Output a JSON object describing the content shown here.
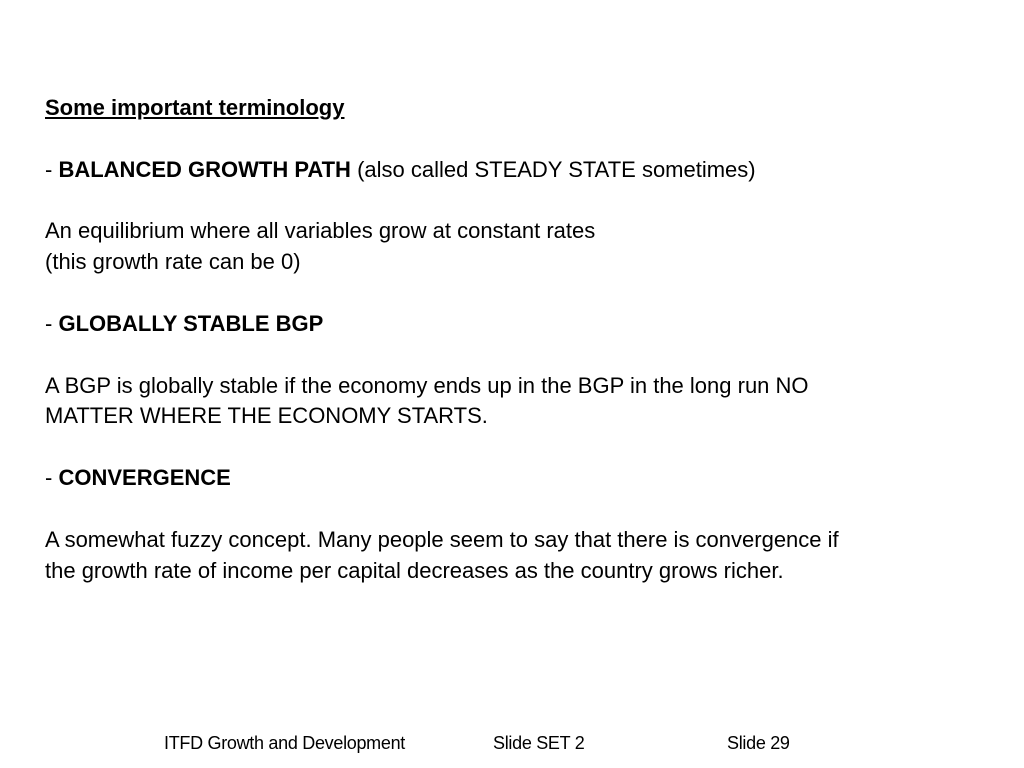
{
  "slide": {
    "heading": "Some important terminology",
    "term1": {
      "dash": "- ",
      "term": "BALANCED GROWTH PATH",
      "note": " (also called STEADY STATE sometimes)"
    },
    "def1_line1": "An equilibrium where all variables grow at constant rates",
    "def1_line2": "(this growth rate can be 0)",
    "term2": {
      "dash": "- ",
      "term": "GLOBALLY STABLE BGP"
    },
    "def2_line1": "A BGP is globally stable if the economy ends up in the BGP in the long run NO",
    "def2_line2": "MATTER WHERE THE ECONOMY STARTS.",
    "term3": {
      "dash": "- ",
      "term": "CONVERGENCE"
    },
    "def3_line1": "A somewhat fuzzy concept. Many people seem to say that there is convergence if",
    "def3_line2": "the growth rate of income per capital decreases as the country grows richer."
  },
  "footer": {
    "course": "ITFD Growth and Development",
    "set": "Slide SET 2",
    "slide_number": "Slide 29"
  }
}
